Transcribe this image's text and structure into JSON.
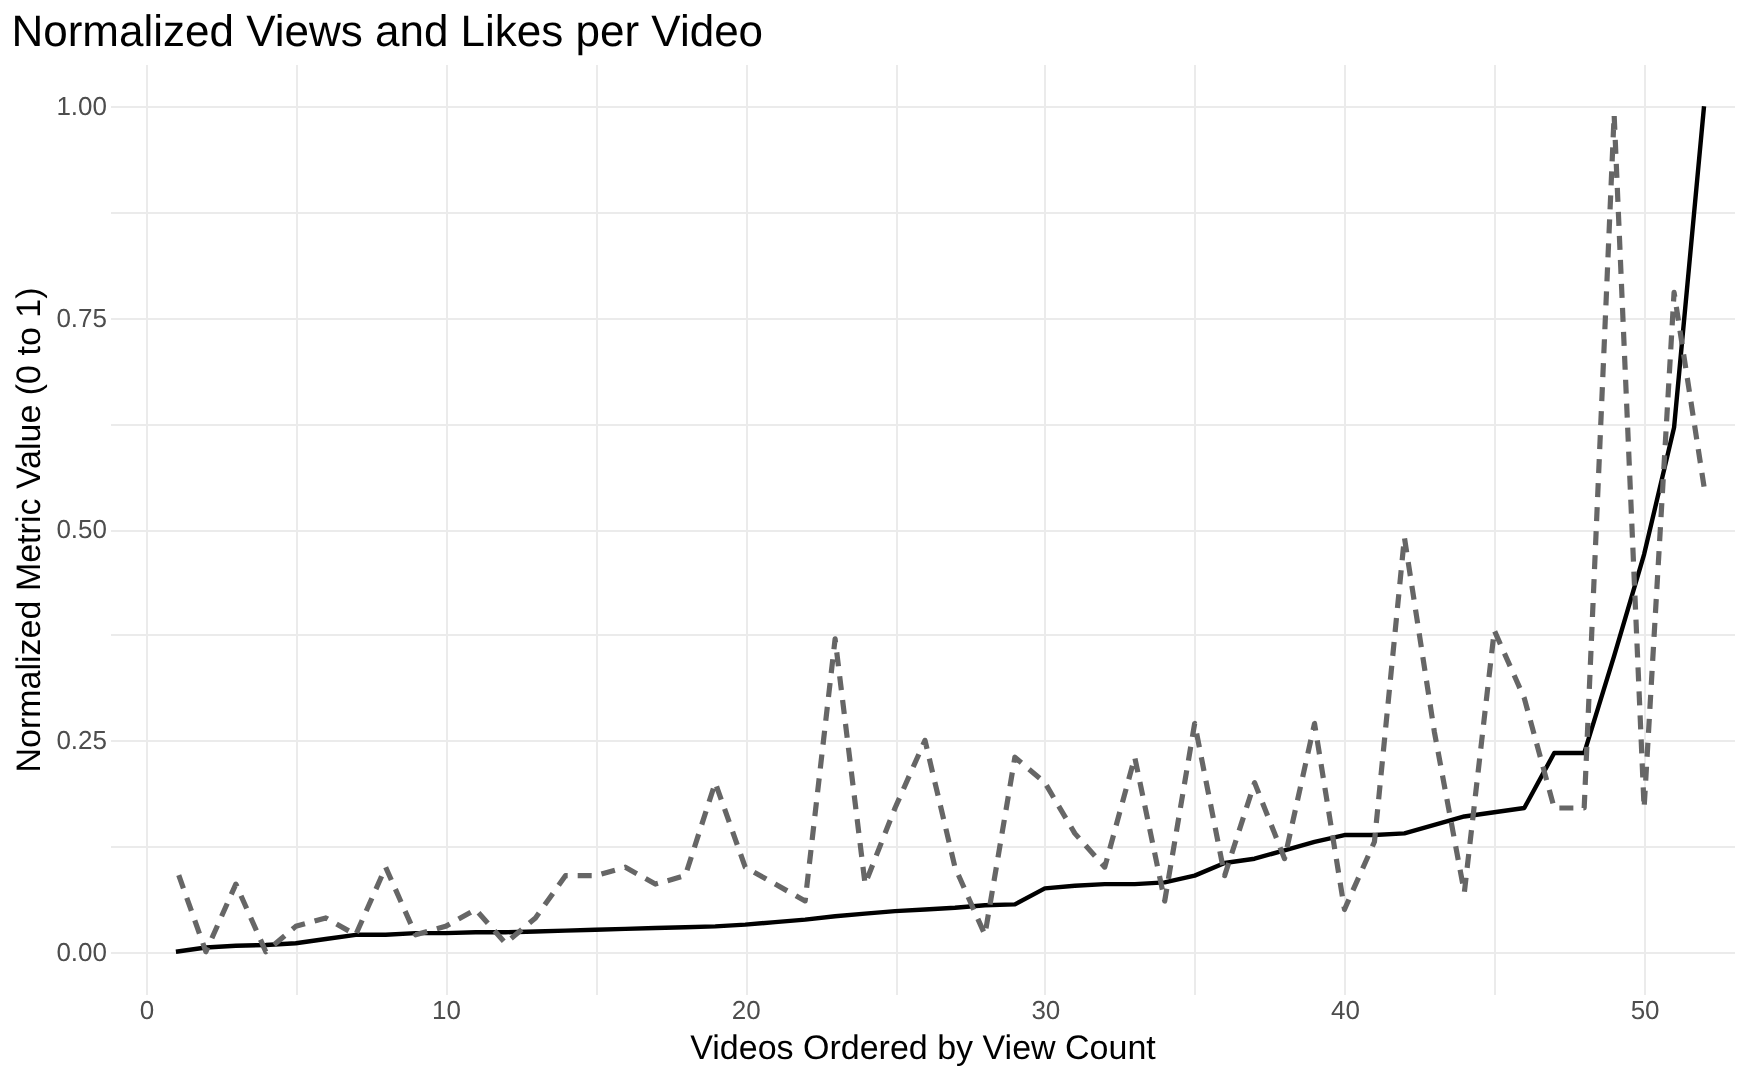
{
  "chart_data": {
    "type": "line",
    "title": "Normalized Views and Likes per Video",
    "xlabel": "Videos Ordered by View Count",
    "ylabel": "Normalized Metric Value (0 to 1)",
    "x": [
      1,
      2,
      3,
      4,
      5,
      6,
      7,
      8,
      9,
      10,
      11,
      12,
      13,
      14,
      15,
      16,
      17,
      18,
      19,
      20,
      21,
      22,
      23,
      24,
      25,
      26,
      27,
      28,
      29,
      30,
      31,
      32,
      33,
      34,
      35,
      36,
      37,
      38,
      39,
      40,
      41,
      42,
      43,
      44,
      45,
      46,
      47,
      48,
      49,
      50,
      51,
      52
    ],
    "series": [
      {
        "color": "#000000",
        "line_style": "solid",
        "values": [
          0.0,
          0.005,
          0.007,
          0.008,
          0.01,
          0.015,
          0.02,
          0.02,
          0.022,
          0.022,
          0.023,
          0.023,
          0.024,
          0.025,
          0.026,
          0.027,
          0.028,
          0.029,
          0.03,
          0.032,
          0.035,
          0.038,
          0.042,
          0.045,
          0.048,
          0.05,
          0.052,
          0.055,
          0.056,
          0.075,
          0.078,
          0.08,
          0.08,
          0.082,
          0.09,
          0.105,
          0.11,
          0.12,
          0.13,
          0.138,
          0.138,
          0.14,
          0.15,
          0.16,
          0.165,
          0.17,
          0.235,
          0.235,
          0.35,
          0.47,
          0.62,
          1.0
        ]
      },
      {
        "color": "#666666",
        "line_style": "dashed",
        "values": [
          0.1,
          0.0,
          0.08,
          0.0,
          0.03,
          0.04,
          0.02,
          0.1,
          0.02,
          0.03,
          0.05,
          0.01,
          0.04,
          0.09,
          0.09,
          0.1,
          0.08,
          0.09,
          0.2,
          0.1,
          0.08,
          0.06,
          0.37,
          0.08,
          0.17,
          0.25,
          0.1,
          0.02,
          0.23,
          0.2,
          0.14,
          0.1,
          0.23,
          0.06,
          0.27,
          0.09,
          0.2,
          0.11,
          0.27,
          0.05,
          0.13,
          0.49,
          0.26,
          0.07,
          0.38,
          0.3,
          0.17,
          0.17,
          0.99,
          0.17,
          0.78,
          0.55
        ]
      }
    ],
    "xlim": [
      -1.2,
      53
    ],
    "ylim": [
      -0.05,
      1.05
    ],
    "xticks": [
      0,
      {
        "value": 5,
        "label": null
      },
      10,
      {
        "value": 15,
        "label": null
      },
      20,
      {
        "value": 25,
        "label": null
      },
      30,
      {
        "value": 35,
        "label": null
      },
      40,
      {
        "value": 45,
        "label": null
      },
      50
    ],
    "yticks": [
      {
        "value": 0,
        "label": "0.00"
      },
      {
        "value": 0.125,
        "label": null
      },
      {
        "value": 0.25,
        "label": "0.25"
      },
      {
        "value": 0.375,
        "label": null
      },
      {
        "value": 0.5,
        "label": "0.50"
      },
      {
        "value": 0.625,
        "label": null
      },
      {
        "value": 0.75,
        "label": "0.75"
      },
      {
        "value": 0.875,
        "label": null
      },
      {
        "value": 1,
        "label": "1.00"
      }
    ],
    "grid": true,
    "marker": "none"
  }
}
